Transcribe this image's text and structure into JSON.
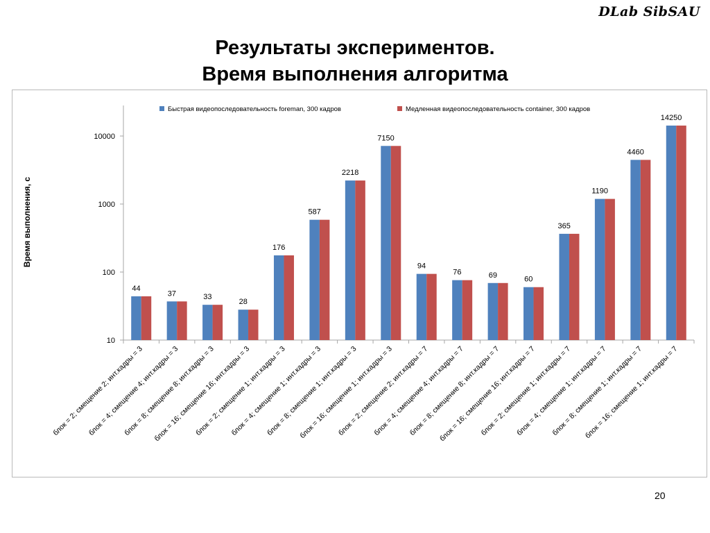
{
  "brand": "DLab SibSAU",
  "title_line1": "Результаты экспериментов.",
  "title_line2": "Время выполнения алгоритма",
  "page_number": "20",
  "colors": {
    "series1": "#4f81bd",
    "series2": "#c0504d",
    "axis": "#a6a6a6",
    "text": "#000000"
  },
  "chart_data": {
    "type": "bar",
    "title": "",
    "xlabel": "",
    "ylabel": "Время выполнения, с",
    "yscale": "log",
    "ylim": [
      10,
      20000
    ],
    "yticks": [
      10,
      100,
      1000,
      10000
    ],
    "ytick_labels": [
      "10",
      "100",
      "1000",
      "10000"
    ],
    "legend_position": "top",
    "categories": [
      "блок = 2; смещение 2; инт.кадры = 3",
      "блок = 4; смещение 4; инт.кадры = 3",
      "блок = 8; смещение 8; инт.кадры = 3",
      "блок = 16; смещение 16; инт.кадры = 3",
      "блок = 2; смещение 1; инт.кадры = 3",
      "блок = 4; смещение 1; инт.кадры = 3",
      "блок = 8; смещение 1; инт.кадры = 3",
      "блок = 16; смещение 1; инт.кадры = 3",
      "блок = 2; смещение 2; инт.кадры = 7",
      "блок = 4; смещение 4; инт.кадры = 7",
      "блок = 8; смещение 8; инт.кадры = 7",
      "блок = 16; смещение 16; инт.кадры = 7",
      "блок = 2; смещение 1; инт.кадры = 7",
      "блок = 4; смещение 1; инт.кадры = 7",
      "блок = 8; смещение 1; инт.кадры = 7",
      "блок = 16; смещение 1; инт.кадры = 7"
    ],
    "data_labels": [
      "44",
      "37",
      "33",
      "28",
      "176",
      "587",
      "2218",
      "7150",
      "94",
      "76",
      "69",
      "60",
      "365",
      "1190",
      "4460",
      "14250"
    ],
    "series": [
      {
        "name": "Быстрая видеопоследовательность foreman, 300 кадров",
        "color": "#4f81bd",
        "values": [
          44,
          37,
          33,
          28,
          176,
          587,
          2218,
          7150,
          94,
          76,
          69,
          60,
          365,
          1190,
          4460,
          14250
        ]
      },
      {
        "name": "Медленная видеопоследовательность container, 300 кадров",
        "color": "#c0504d",
        "values": [
          44,
          37,
          33,
          28,
          176,
          587,
          2218,
          7150,
          94,
          76,
          69,
          60,
          365,
          1190,
          4460,
          14250
        ]
      }
    ]
  }
}
